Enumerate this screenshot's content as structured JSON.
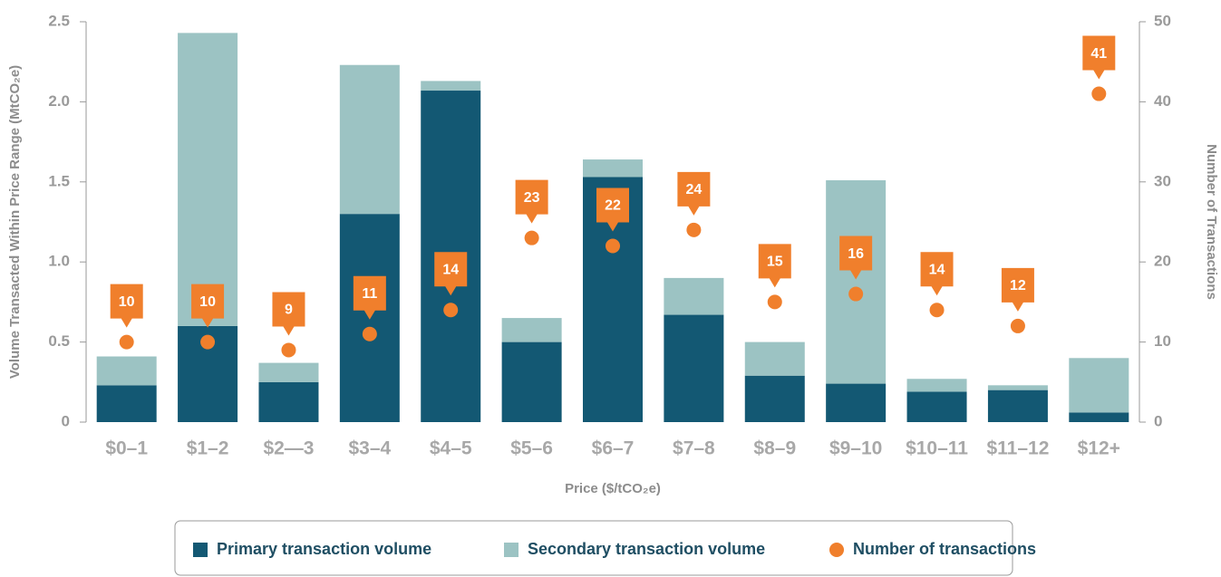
{
  "chart_data": {
    "type": "bar",
    "stacked": true,
    "categories": [
      "$0–1",
      "$1–2",
      "$2—3",
      "$3–4",
      "$4–5",
      "$5–6",
      "$6–7",
      "$7–8",
      "$8–9",
      "$9–10",
      "$10–11",
      "$11–12",
      "$12+"
    ],
    "series": [
      {
        "name": "Primary transaction volume",
        "color": "#135873",
        "values": [
          0.23,
          0.6,
          0.25,
          1.3,
          2.07,
          0.5,
          1.53,
          0.67,
          0.29,
          0.24,
          0.19,
          0.2,
          0.06
        ]
      },
      {
        "name": "Secondary transaction volume",
        "color": "#9cc3c3",
        "values": [
          0.18,
          1.83,
          0.12,
          0.93,
          0.06,
          0.15,
          0.11,
          0.23,
          0.21,
          1.27,
          0.08,
          0.03,
          0.34
        ]
      },
      {
        "name": "Number of transactions",
        "color": "#f07f2c",
        "type": "scatter",
        "axis": "y2",
        "values": [
          10,
          10,
          9,
          11,
          14,
          23,
          22,
          24,
          15,
          16,
          14,
          12,
          41
        ]
      }
    ],
    "xlabel": "Price ($/tCO₂e)",
    "ylabel": "Volume Transacted Within Price Range (MtCO₂e)",
    "y2label": "Number of Transactions",
    "ylim": [
      0,
      2.5
    ],
    "yticks": [
      0,
      0.5,
      {
        "value": 1,
        "label": "1.0"
      },
      1.5,
      {
        "value": 2,
        "label": "2.0"
      },
      2.5
    ],
    "y2lim": [
      0,
      50
    ],
    "y2ticks": [
      0,
      10,
      20,
      30,
      40,
      50
    ],
    "legend": "bottom"
  }
}
